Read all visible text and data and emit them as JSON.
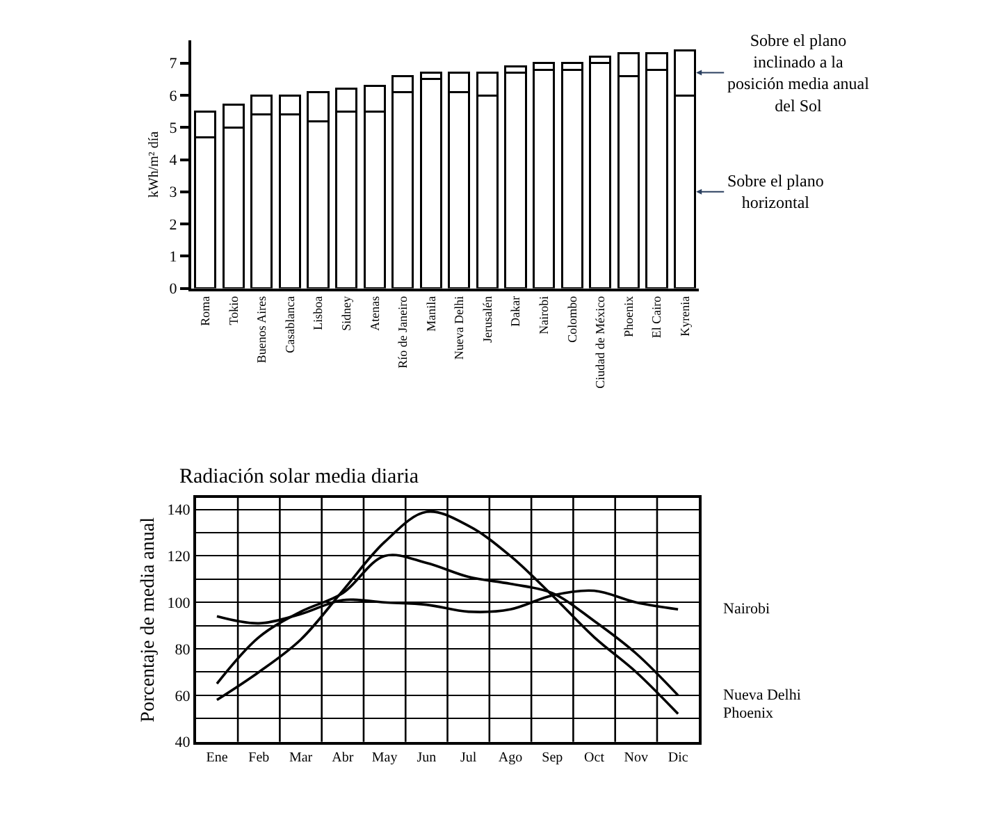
{
  "chart_data": [
    {
      "type": "bar",
      "stacked": true,
      "ylabel": "kWh/m² día",
      "legend": false,
      "grid": false,
      "categories": [
        "Roma",
        "Tokio",
        "Buenos Aires",
        "Casablanca",
        "Lisboa",
        "Sidney",
        "Atenas",
        "Río de Janeiro",
        "Manila",
        "Nueva Delhi",
        "Jerusalén",
        "Dakar",
        "Nairobi",
        "Colombo",
        "Ciudad de México",
        "Phoenix",
        "El Cairo",
        "Kyrenia"
      ],
      "ylim": [
        0,
        7.7
      ],
      "yticks": [
        0,
        1,
        2,
        3,
        4,
        5,
        6,
        7
      ],
      "series": [
        {
          "name": "Sobre el plano horizontal",
          "color": "#ffffff",
          "values": [
            4.7,
            5.0,
            5.4,
            5.4,
            5.2,
            5.5,
            5.5,
            6.1,
            6.5,
            6.1,
            6.0,
            6.7,
            6.8,
            6.8,
            7.0,
            6.6,
            6.8,
            6.0
          ]
        },
        {
          "name": "Sobre el plano inclinado a la posición media anual del Sol",
          "color": "#ffffff",
          "values": [
            0.8,
            0.7,
            0.6,
            0.6,
            0.9,
            0.7,
            0.8,
            0.5,
            0.2,
            0.6,
            0.7,
            0.2,
            0.2,
            0.2,
            0.2,
            0.7,
            0.5,
            1.4
          ]
        }
      ]
    },
    {
      "type": "line",
      "title": "Radiación solar media diaria",
      "ylabel": "Porcentaje de media anual",
      "legend": false,
      "grid": true,
      "marker": "none",
      "line_style": "solid",
      "categories": [
        "Ene",
        "Feb",
        "Mar",
        "Abr",
        "May",
        "Jun",
        "Jul",
        "Ago",
        "Sep",
        "Oct",
        "Nov",
        "Dic"
      ],
      "ylim": [
        40,
        145
      ],
      "yticks": [
        40,
        {
          "value": 50,
          "label": null
        },
        60,
        {
          "value": 70,
          "label": null
        },
        80,
        {
          "value": 90,
          "label": null
        },
        100,
        {
          "value": 110,
          "label": null
        },
        120,
        {
          "value": 130,
          "label": null
        },
        140
      ],
      "series": [
        {
          "name": "Nairobi",
          "color": "#000000",
          "values": [
            94,
            91,
            95,
            101,
            100,
            99,
            96,
            97,
            103,
            105,
            100,
            97
          ]
        },
        {
          "name": "Nueva Delhi",
          "color": "#000000",
          "values": [
            65,
            85,
            96,
            104,
            120,
            117,
            111,
            108,
            104,
            92,
            78,
            60
          ]
        },
        {
          "name": "Phoenix",
          "color": "#000000",
          "values": [
            58,
            70,
            84,
            105,
            126,
            139,
            133,
            120,
            103,
            85,
            70,
            52
          ]
        }
      ]
    }
  ]
}
